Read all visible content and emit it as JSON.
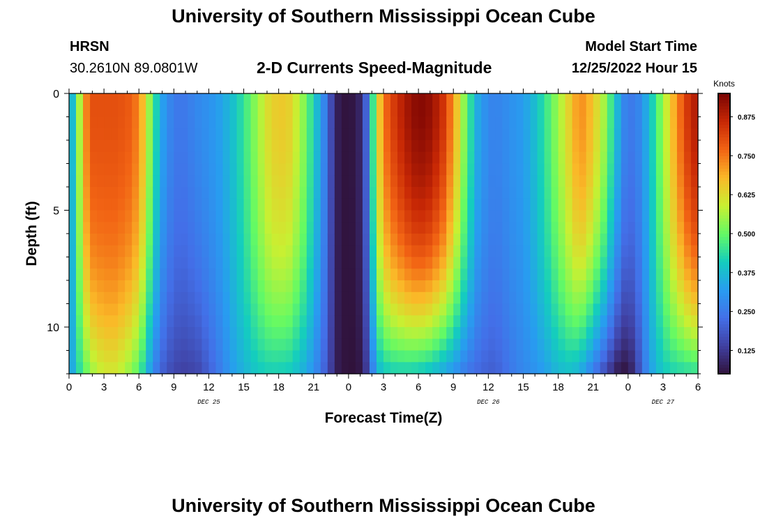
{
  "header": {
    "title": "University of Southern Mississippi Ocean Cube",
    "station": "HRSN",
    "coordinates": "30.2610N  89.0801W",
    "plot_title": "2-D Currents Speed-Magnitude",
    "model_start_label": "Model Start Time",
    "model_start_value": "12/25/2022 Hour 15"
  },
  "footer": {
    "title": "University of Southern Mississippi Ocean Cube"
  },
  "chart_data": {
    "type": "heatmap",
    "title": "2-D Currents Speed-Magnitude",
    "xlabel": "Forecast Time(Z)",
    "ylabel": "Depth (ft)",
    "x_range_hours": [
      0,
      54
    ],
    "y_range_ft": [
      0,
      12
    ],
    "x_tick_labels": [
      "0",
      "3",
      "6",
      "9",
      "12",
      "15",
      "18",
      "21",
      "0",
      "3",
      "6",
      "9",
      "12",
      "15",
      "18",
      "21",
      "0",
      "3",
      "6"
    ],
    "y_tick_labels": [
      "0",
      "5",
      "10"
    ],
    "date_labels": [
      {
        "text": "DEC 25",
        "hour": 12
      },
      {
        "text": "DEC 26",
        "hour": 36
      },
      {
        "text": "DEC 27",
        "hour": 51
      }
    ],
    "colorbar": {
      "title": "Knots",
      "min": 0.05,
      "max": 0.95,
      "tick_labels": [
        "0.125",
        "0.250",
        "0.375",
        "0.500",
        "0.625",
        "0.750",
        "0.875"
      ],
      "tick_values": [
        0.125,
        0.25,
        0.375,
        0.5,
        0.625,
        0.75,
        0.875
      ],
      "colormap": "turbo"
    },
    "surface_profile_knots": {
      "hours": [
        0,
        0.5,
        1,
        1.5,
        2,
        3,
        4,
        5,
        6,
        6.6,
        7.2,
        8,
        9,
        10,
        11,
        12,
        13,
        14,
        15,
        15.6,
        16.2,
        17,
        18,
        19,
        20,
        21,
        22,
        22.6,
        23.2,
        24,
        24.8,
        25.4,
        26,
        26.6,
        27.2,
        28,
        29,
        30,
        31,
        32,
        33,
        34,
        35,
        36,
        36.6,
        37.2,
        38,
        39,
        40,
        41,
        42,
        43,
        43.6,
        44.2,
        45,
        46,
        47,
        47.6,
        48.2,
        49,
        49.6,
        50.2,
        51,
        52,
        53,
        54
      ],
      "values": [
        0.3,
        0.43,
        0.6,
        0.74,
        0.8,
        0.8,
        0.8,
        0.79,
        0.74,
        0.62,
        0.47,
        0.33,
        0.25,
        0.25,
        0.28,
        0.3,
        0.33,
        0.38,
        0.45,
        0.5,
        0.55,
        0.62,
        0.66,
        0.64,
        0.55,
        0.42,
        0.26,
        0.14,
        0.06,
        0.05,
        0.07,
        0.16,
        0.42,
        0.65,
        0.77,
        0.84,
        0.9,
        0.94,
        0.92,
        0.86,
        0.72,
        0.52,
        0.35,
        0.28,
        0.27,
        0.28,
        0.3,
        0.32,
        0.38,
        0.46,
        0.55,
        0.65,
        0.71,
        0.72,
        0.66,
        0.55,
        0.38,
        0.28,
        0.25,
        0.28,
        0.35,
        0.43,
        0.55,
        0.7,
        0.83,
        0.9
      ]
    },
    "bottom_profile_knots": {
      "hours": [
        0,
        0.5,
        1,
        1.5,
        2,
        3,
        4,
        5,
        6,
        6.6,
        7.2,
        8,
        9,
        10,
        11,
        12,
        13,
        14,
        15,
        15.6,
        16.2,
        17,
        18,
        19,
        20,
        21,
        22,
        22.6,
        23.2,
        24,
        24.8,
        25.4,
        26,
        26.6,
        27.2,
        28,
        29,
        30,
        31,
        32,
        33,
        34,
        35,
        36,
        36.6,
        37.2,
        38,
        39,
        40,
        41,
        42,
        43,
        43.6,
        44.2,
        45,
        46,
        47,
        47.6,
        48.2,
        49,
        49.6,
        50.2,
        51,
        52,
        53,
        54
      ],
      "values": [
        0.3,
        0.38,
        0.45,
        0.5,
        0.55,
        0.6,
        0.6,
        0.55,
        0.48,
        0.38,
        0.28,
        0.2,
        0.15,
        0.14,
        0.15,
        0.2,
        0.26,
        0.32,
        0.36,
        0.38,
        0.4,
        0.41,
        0.41,
        0.4,
        0.36,
        0.3,
        0.2,
        0.12,
        0.06,
        0.05,
        0.05,
        0.1,
        0.25,
        0.37,
        0.4,
        0.41,
        0.41,
        0.4,
        0.38,
        0.34,
        0.3,
        0.25,
        0.22,
        0.2,
        0.2,
        0.22,
        0.25,
        0.28,
        0.3,
        0.33,
        0.37,
        0.38,
        0.36,
        0.32,
        0.25,
        0.16,
        0.07,
        0.05,
        0.07,
        0.18,
        0.28,
        0.35,
        0.4,
        0.42,
        0.43,
        0.44
      ]
    },
    "depth_profile_factor": {
      "depth_ft": [
        0,
        1,
        2,
        3,
        4,
        5,
        6,
        7,
        8,
        9,
        10,
        11,
        12
      ],
      "factor": [
        0,
        0,
        0.02,
        0.05,
        0.09,
        0.14,
        0.2,
        0.28,
        0.38,
        0.5,
        0.64,
        0.8,
        1
      ]
    },
    "grid_steps": {
      "hour": 0.6,
      "depth_ft": 0.5
    },
    "grid": false,
    "legend": "right"
  }
}
